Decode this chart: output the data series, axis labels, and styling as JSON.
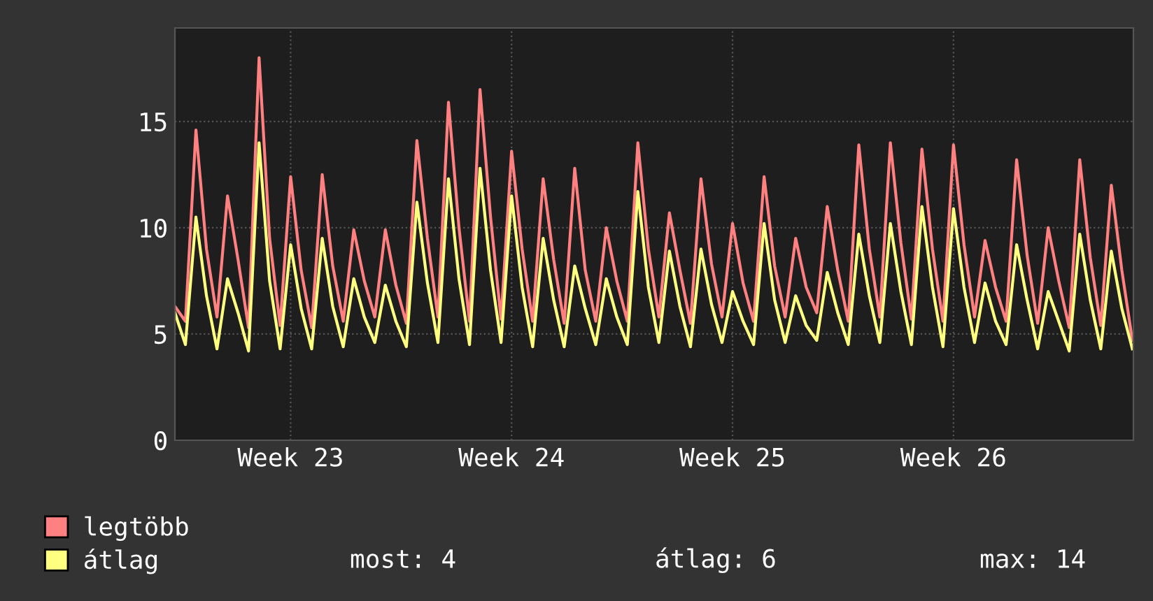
{
  "chart_data": {
    "type": "line",
    "categories": [
      null,
      null,
      null,
      null,
      null,
      null,
      null,
      null,
      null,
      null,
      null,
      "Week 23",
      null,
      null,
      null,
      null,
      null,
      null,
      null,
      null,
      null,
      null,
      null,
      null,
      null,
      null,
      null,
      null,
      null,
      null,
      null,
      null,
      "Week 24",
      null,
      null,
      null,
      null,
      null,
      null,
      null,
      null,
      null,
      null,
      null,
      null,
      null,
      null,
      null,
      null,
      null,
      null,
      null,
      null,
      "Week 25",
      null,
      null,
      null,
      null,
      null,
      null,
      null,
      null,
      null,
      null,
      null,
      null,
      null,
      null,
      null,
      null,
      null,
      null,
      null,
      null,
      "Week 26",
      null,
      null,
      null,
      null,
      null,
      null,
      null,
      null,
      null,
      null,
      null,
      null,
      null,
      null,
      null,
      null,
      null
    ],
    "series": [
      {
        "name": "legtöbb",
        "color": "#ff8080",
        "values": [
          6.3,
          5.6,
          14.6,
          9,
          5.8,
          11.5,
          8.5,
          5.3,
          18,
          9.5,
          5.4,
          12.4,
          8,
          5.3,
          12.5,
          8.2,
          5.6,
          9.9,
          7.5,
          5.8,
          9.9,
          7.3,
          5.5,
          14.1,
          9.5,
          5.8,
          15.9,
          10,
          5.6,
          16.5,
          10.5,
          5.7,
          13.6,
          9,
          5.6,
          12.3,
          8.5,
          5.5,
          12.8,
          8,
          5.6,
          10,
          7.5,
          5.6,
          14,
          9,
          5.8,
          10.7,
          8,
          5.5,
          12.3,
          8.3,
          5.8,
          10.2,
          7.4,
          5.6,
          12.4,
          8.2,
          5.8,
          9.5,
          7.2,
          6,
          11,
          8,
          5.6,
          13.9,
          9,
          5.8,
          14,
          9.3,
          5.7,
          13.7,
          9,
          5.6,
          13.9,
          9.2,
          5.8,
          9.4,
          7.2,
          5.6,
          13.2,
          8.7,
          5.5,
          10,
          7.5,
          5.3,
          13.2,
          8.6,
          5.4,
          12,
          8,
          4.7
        ]
      },
      {
        "name": "átlag",
        "color": "#ffff80",
        "values": [
          6,
          4.5,
          10.5,
          6.8,
          4.3,
          7.6,
          6,
          4.2,
          14,
          7.5,
          4.3,
          9.2,
          6.2,
          4.3,
          9.5,
          6.3,
          4.4,
          7.6,
          5.8,
          4.6,
          7.3,
          5.6,
          4.4,
          11.2,
          7.4,
          4.6,
          12.3,
          7.6,
          4.5,
          12.8,
          8,
          4.6,
          11.5,
          7.2,
          4.4,
          9.5,
          6.6,
          4.4,
          8.2,
          6.2,
          4.5,
          7.6,
          5.8,
          4.5,
          11.7,
          7.2,
          4.6,
          8.9,
          6.3,
          4.4,
          9,
          6.4,
          4.6,
          7,
          5.6,
          4.5,
          10.2,
          6.6,
          4.6,
          6.8,
          5.4,
          4.7,
          7.9,
          6,
          4.5,
          9.7,
          6.8,
          4.6,
          10.2,
          7,
          4.5,
          11,
          7.2,
          4.4,
          10.9,
          7.2,
          4.6,
          7.4,
          5.6,
          4.5,
          9.2,
          6.6,
          4.3,
          7,
          5.6,
          4.2,
          9.7,
          6.6,
          4.3,
          8.9,
          6.2,
          4.3
        ]
      }
    ],
    "ylim": [
      0,
      19.4
    ],
    "yticks": [
      0,
      5,
      10,
      15
    ],
    "grid": true,
    "legend": "bottom left",
    "annotations": [
      "most: 4",
      "átlag: 6",
      "max: 14"
    ]
  }
}
